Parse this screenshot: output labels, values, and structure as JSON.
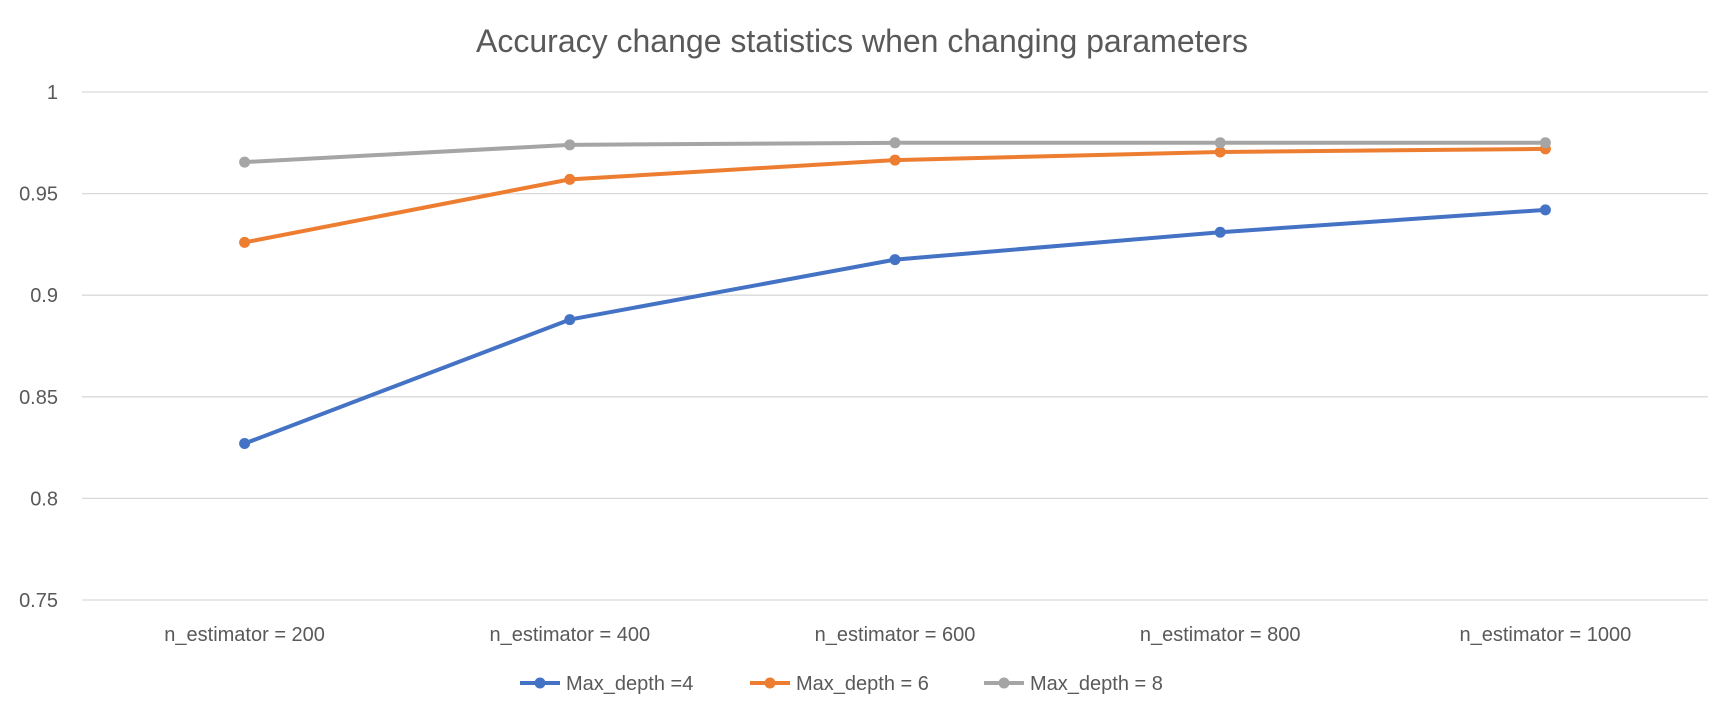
{
  "chart_data": {
    "type": "line",
    "title": "Accuracy change statistics when changing parameters",
    "xlabel": "",
    "ylabel": "",
    "categories": [
      "n_estimator = 200",
      "n_estimator = 400",
      "n_estimator = 600",
      "n_estimator = 800",
      "n_estimator = 1000"
    ],
    "ylim": [
      0.75,
      1
    ],
    "yticks": [
      0.75,
      0.8,
      0.85,
      0.9,
      0.95,
      1
    ],
    "ytick_labels": [
      "0.75",
      "0.8",
      "0.85",
      "0.9",
      "0.95",
      "1"
    ],
    "grid": true,
    "legend_position": "bottom",
    "series": [
      {
        "name": "Max_depth =4",
        "color": "#4472c4",
        "values": [
          0.827,
          0.888,
          0.9175,
          0.931,
          0.942
        ]
      },
      {
        "name": "Max_depth = 6",
        "color": "#ed7d31",
        "values": [
          0.926,
          0.957,
          0.9665,
          0.9705,
          0.972
        ]
      },
      {
        "name": "Max_depth = 8",
        "color": "#a5a5a5",
        "values": [
          0.9655,
          0.974,
          0.975,
          0.975,
          0.975
        ]
      }
    ]
  }
}
